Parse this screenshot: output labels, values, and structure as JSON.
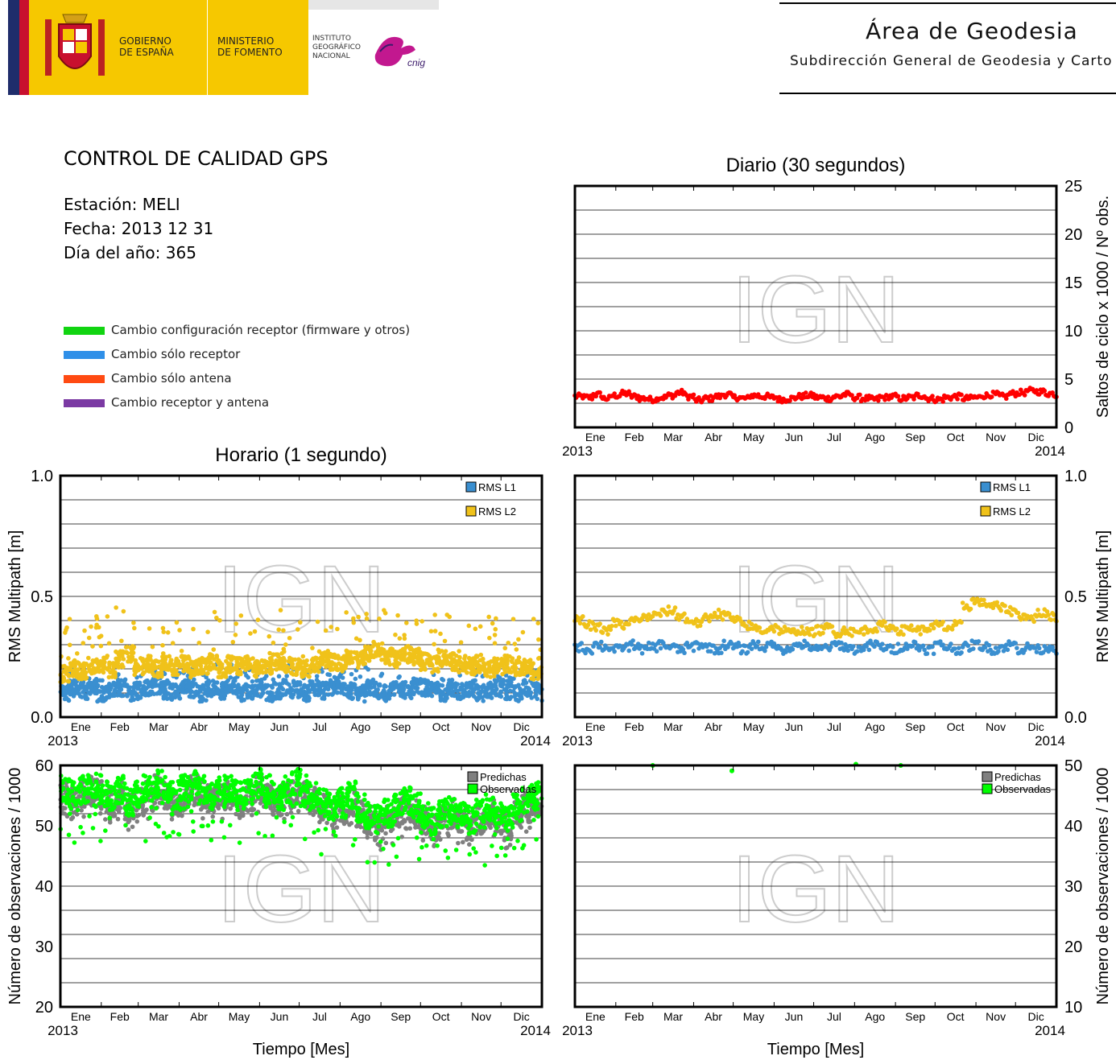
{
  "header": {
    "gov_line1": "GOBIERNO",
    "gov_line2": "DE ESPAÑA",
    "ministry_line1": "MINISTERIO",
    "ministry_line2": "DE FOMENTO",
    "ign_line1": "INSTITUTO",
    "ign_line2": "GEOGRÁFICO",
    "ign_line3": "NACIONAL",
    "cnig_logo": "cnig",
    "area_title": "Área de Geodesia",
    "area_subtitle": "Subdirección General de Geodesia y Carto"
  },
  "info": {
    "title": "CONTROL DE CALIDAD GPS",
    "station": "Estación: MELI",
    "date": "Fecha: 2013 12 31",
    "doy": "Día del año: 365"
  },
  "legend": [
    {
      "label": "Cambio configuración receptor (firmware y otros)",
      "color": "#11d411"
    },
    {
      "label": "Cambio sólo receptor",
      "color": "#2f8fe8"
    },
    {
      "label": "Cambio sólo antena",
      "color": "#ff4a12"
    },
    {
      "label": "Cambio receptor y antena",
      "color": "#7b3aa3"
    }
  ],
  "watermark": "IGN",
  "chart_data": [
    {
      "id": "cycle-slips-daily",
      "type": "scatter",
      "title": "Diario (30 segundos)",
      "xlabel": "",
      "ylabel": "Saltos de ciclo x 1000 / Nº obs.",
      "x_ticks": [
        "Ene",
        "Feb",
        "Mar",
        "Abr",
        "May",
        "Jun",
        "Jul",
        "Ago",
        "Sep",
        "Oct",
        "Nov",
        "Dic"
      ],
      "x_start_label": "2013",
      "x_end_label": "2014",
      "ylim": [
        0,
        25
      ],
      "y_ticks": [
        0,
        5,
        10,
        15,
        20,
        25
      ],
      "grid": true,
      "series": [
        {
          "color": "#ff0000",
          "x_start": "2013-01-01",
          "x_step_days": 7,
          "values": [
            3.2,
            3.1,
            3.4,
            3.0,
            3.3,
            3.5,
            3.2,
            3.0,
            2.9,
            3.1,
            3.3,
            3.6,
            3.2,
            2.8,
            3.0,
            3.2,
            3.4,
            3.1,
            3.0,
            3.3,
            3.2,
            3.1,
            2.9,
            3.0,
            3.2,
            3.3,
            3.1,
            3.0,
            3.2,
            3.4,
            3.1,
            3.0,
            2.9,
            3.1,
            3.2,
            3.0,
            3.1,
            3.3,
            3.0,
            2.9,
            3.1,
            3.2,
            3.0,
            3.1,
            3.3,
            3.4,
            3.2,
            3.5,
            3.6,
            3.8,
            3.7,
            3.5,
            3.3
          ]
        }
      ]
    },
    {
      "id": "multipath-hourly",
      "type": "scatter",
      "title": "Horario (1 segundo)",
      "xlabel": "",
      "ylabel": "RMS Multipath [m]",
      "x_ticks": [
        "Ene",
        "Feb",
        "Mar",
        "Abr",
        "May",
        "Jun",
        "Jul",
        "Ago",
        "Sep",
        "Oct",
        "Nov",
        "Dic"
      ],
      "x_start_label": "2013",
      "x_end_label": "2014",
      "ylim": [
        0.0,
        1.0
      ],
      "y_tick_labels": [
        "0.0",
        "0.5",
        "1.0"
      ],
      "grid": true,
      "legend_position": "top-right",
      "series": [
        {
          "name": "RMS L1",
          "color": "#3a8fd0",
          "x_start": "2013-01-01",
          "x_step_days": 7,
          "values": [
            0.1,
            0.12,
            0.11,
            0.13,
            0.1,
            0.11,
            0.12,
            0.1,
            0.11,
            0.12,
            0.13,
            0.11,
            0.1,
            0.12,
            0.11,
            0.1,
            0.12,
            0.11,
            0.13,
            0.1,
            0.11,
            0.12,
            0.1,
            0.11,
            0.12,
            0.11,
            0.1,
            0.12,
            0.11,
            0.12,
            0.13,
            0.11,
            0.1,
            0.12,
            0.11,
            0.1,
            0.12,
            0.11,
            0.13,
            0.12,
            0.11,
            0.1,
            0.12,
            0.11,
            0.12,
            0.1,
            0.11,
            0.12,
            0.11,
            0.1,
            0.12,
            0.11,
            0.1
          ]
        },
        {
          "name": "RMS L2",
          "color": "#f0c21a",
          "x_start": "2013-01-01",
          "x_step_days": 7,
          "values": [
            0.18,
            0.2,
            0.19,
            0.21,
            0.22,
            0.2,
            0.24,
            0.26,
            0.21,
            0.22,
            0.2,
            0.23,
            0.21,
            0.22,
            0.2,
            0.21,
            0.23,
            0.2,
            0.22,
            0.21,
            0.22,
            0.2,
            0.21,
            0.23,
            0.22,
            0.21,
            0.2,
            0.22,
            0.24,
            0.23,
            0.22,
            0.25,
            0.24,
            0.26,
            0.27,
            0.25,
            0.24,
            0.26,
            0.25,
            0.23,
            0.22,
            0.24,
            0.23,
            0.22,
            0.21,
            0.22,
            0.2,
            0.21,
            0.22,
            0.2,
            0.21,
            0.19,
            0.2
          ]
        }
      ]
    },
    {
      "id": "multipath-daily",
      "type": "scatter",
      "title": "",
      "xlabel": "",
      "ylabel": "RMS Multipath [m]",
      "x_ticks": [
        "Ene",
        "Feb",
        "Mar",
        "Abr",
        "May",
        "Jun",
        "Jul",
        "Ago",
        "Sep",
        "Oct",
        "Nov",
        "Dic"
      ],
      "x_start_label": "2013",
      "x_end_label": "2014",
      "ylim": [
        0.0,
        1.0
      ],
      "y_tick_labels": [
        "0.0",
        "0.5",
        "1.0"
      ],
      "grid": true,
      "legend_position": "top-right",
      "series": [
        {
          "name": "RMS L1",
          "color": "#3a8fd0",
          "x_start": "2013-01-01",
          "x_step_days": 7,
          "values": [
            0.29,
            0.28,
            0.3,
            0.29,
            0.28,
            0.29,
            0.3,
            0.28,
            0.29,
            0.3,
            0.29,
            0.28,
            0.29,
            0.3,
            0.29,
            0.28,
            0.3,
            0.29,
            0.28,
            0.3,
            0.29,
            0.3,
            0.28,
            0.29,
            0.3,
            0.29,
            0.28,
            0.29,
            0.3,
            0.29,
            0.28,
            0.29,
            0.3,
            0.29,
            0.28,
            0.29,
            0.3,
            0.29,
            0.28,
            0.3,
            0.29,
            0.28,
            0.29,
            0.3,
            0.29,
            0.28,
            0.29,
            0.3,
            0.28,
            0.29,
            0.28,
            0.29,
            0.28
          ]
        },
        {
          "name": "RMS L2",
          "color": "#f0c21a",
          "x_start": "2013-01-01",
          "x_step_days": 7,
          "values": [
            0.4,
            0.38,
            0.37,
            0.36,
            0.39,
            0.38,
            0.4,
            0.41,
            0.42,
            0.43,
            0.44,
            0.42,
            0.4,
            0.39,
            0.41,
            0.43,
            0.42,
            0.4,
            0.38,
            0.37,
            0.36,
            0.37,
            0.36,
            0.35,
            0.36,
            0.35,
            0.36,
            0.37,
            0.35,
            0.36,
            0.35,
            0.36,
            0.37,
            0.38,
            0.37,
            0.36,
            0.37,
            0.36,
            0.37,
            0.38,
            0.37,
            0.38,
            0.46,
            0.48,
            0.47,
            0.46,
            0.45,
            0.44,
            0.42,
            0.41,
            0.43,
            0.42,
            0.41
          ]
        }
      ]
    },
    {
      "id": "observations-hourly",
      "type": "scatter",
      "title": "",
      "xlabel": "Tiempo [Mes]",
      "ylabel": "Número de observaciones / 1000",
      "x_ticks": [
        "Ene",
        "Feb",
        "Mar",
        "Abr",
        "May",
        "Jun",
        "Jul",
        "Ago",
        "Sep",
        "Oct",
        "Nov",
        "Dic"
      ],
      "x_start_label": "2013",
      "x_end_label": "2014",
      "ylim": [
        20,
        60
      ],
      "y_ticks": [
        20,
        30,
        40,
        50,
        60
      ],
      "grid": true,
      "legend_position": "top-right",
      "series": [
        {
          "name": "Predichas",
          "color": "#808080",
          "x_start": "2013-01-01",
          "x_step_days": 7,
          "values": [
            55,
            54,
            55,
            56,
            55,
            54,
            55,
            53,
            54,
            55,
            56,
            55,
            54,
            55,
            56,
            55,
            54,
            55,
            55,
            54,
            55,
            56,
            55,
            54,
            55,
            56,
            55,
            54,
            53,
            52,
            53,
            54,
            52,
            51,
            50,
            51,
            52,
            53,
            52,
            51,
            50,
            51,
            52,
            51,
            50,
            51,
            52,
            51,
            50,
            52,
            53,
            54,
            55
          ]
        },
        {
          "name": "Observadas",
          "color": "#00ff00",
          "x_start": "2013-01-01",
          "x_step_days": 7,
          "values": [
            56,
            55,
            56,
            57,
            56,
            55,
            56,
            54,
            55,
            56,
            57,
            56,
            55,
            56,
            57,
            56,
            55,
            56,
            56,
            55,
            56,
            57,
            56,
            55,
            56,
            57,
            56,
            55,
            54,
            53,
            54,
            55,
            53,
            52,
            51,
            52,
            53,
            54,
            53,
            52,
            51,
            52,
            53,
            52,
            51,
            52,
            53,
            52,
            51,
            53,
            54,
            55,
            56
          ]
        }
      ]
    },
    {
      "id": "observations-daily",
      "type": "scatter",
      "title": "",
      "xlabel": "Tiempo [Mes]",
      "ylabel": "Número de observaciones / 1000",
      "x_ticks": [
        "Ene",
        "Feb",
        "Mar",
        "Abr",
        "May",
        "Jun",
        "Jul",
        "Ago",
        "Sep",
        "Oct",
        "Nov",
        "Dic"
      ],
      "x_start_label": "2013",
      "x_end_label": "2014",
      "ylim": [
        10,
        50
      ],
      "y_ticks": [
        10,
        20,
        30,
        40,
        50
      ],
      "grid": true,
      "legend_position": "top-right",
      "series": [
        {
          "name": "Predichas",
          "color": "#808080",
          "x_start": "2013-01-01",
          "x_step_days": 7,
          "values": []
        },
        {
          "name": "Observadas",
          "color": "#00ff00",
          "points": [
            [
              "2013-03-01",
              50.0
            ],
            [
              "2013-04-30",
              49.1
            ],
            [
              "2013-08-02",
              50.2
            ],
            [
              "2013-09-05",
              50.0
            ]
          ]
        }
      ]
    }
  ]
}
